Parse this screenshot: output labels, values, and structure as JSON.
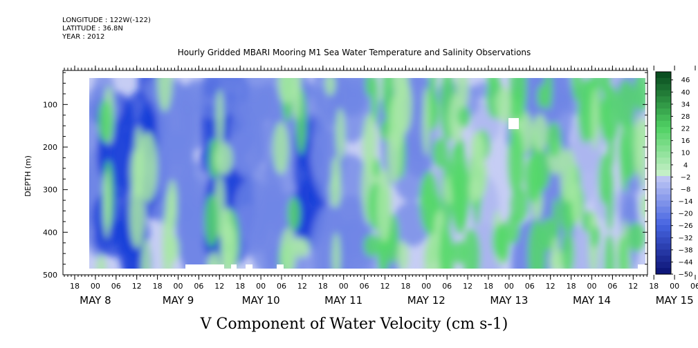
{
  "header": {
    "longitude": "LONGITUDE : 122W(-122)",
    "latitude": "LATITUDE : 36.8N",
    "year": "YEAR : 2012"
  },
  "chart_data": {
    "type": "heatmap",
    "title": "Hourly Gridded MBARI Mooring M1 Sea Water Temperature and Salinity Observations",
    "xlabel": "V Component of Water Velocity (cm s-1)",
    "ylabel": "DEPTH (m)",
    "y_ticks": [
      100,
      200,
      300,
      400,
      500
    ],
    "ylim": [
      500,
      20
    ],
    "x_hour_ticks": [
      "18",
      "00",
      "06",
      "12",
      "18",
      "00",
      "06",
      "12",
      "18",
      "00",
      "06",
      "12",
      "18",
      "00",
      "06",
      "12",
      "18",
      "00",
      "06",
      "12",
      "18",
      "00",
      "06",
      "12",
      "18",
      "00",
      "06",
      "12",
      "18",
      "00",
      "06",
      "12"
    ],
    "x_day_labels": [
      "MAY  8",
      "MAY  9",
      "MAY 10",
      "MAY 11",
      "MAY 12",
      "MAY 13",
      "MAY 14",
      "MAY 15"
    ],
    "x_range": [
      "2012-05-07 18:00",
      "2012-05-15 13:00"
    ],
    "colorbar": {
      "labels": [
        "46",
        "40",
        "34",
        "28",
        "22",
        "16",
        "10",
        "4",
        "-2",
        "-8",
        "-14",
        "-20",
        "-26",
        "-32",
        "-38",
        "-44",
        "-50"
      ],
      "range": [
        -50,
        50
      ],
      "step": 3
    },
    "colors": {
      "strong_neg": "#1a3fd8",
      "neg": "#6f86e6",
      "weak_neg": "#a9b4ef",
      "near_zero": "#c6cdf4",
      "weak_pos": "#a8e7a6",
      "pos": "#55d86a",
      "strong_pos": "#0c6b2a"
    }
  }
}
